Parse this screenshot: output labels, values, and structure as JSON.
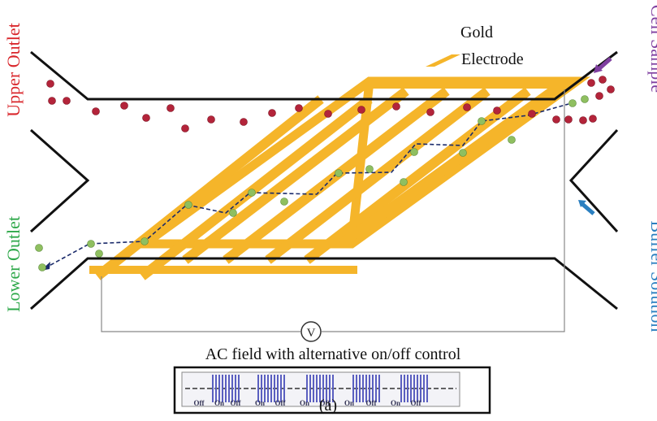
{
  "labels": {
    "upper_outlet": "Upper Outlet",
    "lower_outlet": "Lower Outlet",
    "cell_sample": "Cell Sample",
    "buffer_solution": "Buffer Solution",
    "gold_line1": "Gold",
    "gold_line2": "Electrode",
    "ac_field": "AC field with alternative on/off control",
    "voltage_symbol": "V",
    "caption": "(a)"
  },
  "colors": {
    "upper": "#d9262b",
    "lower": "#2ea84a",
    "cell_sample": "#7f3fa0",
    "buffer": "#2a7fc0",
    "gold": "#f5b52a",
    "channel": "#111111",
    "red_particle": "#b3243a",
    "green_particle": "#8fbf60",
    "pulse": "#5a5fc0"
  },
  "inset": {
    "sequence": [
      "Off",
      "On",
      "Off",
      "On",
      "Off",
      "On",
      "Off",
      "On",
      "Off",
      "On",
      "Off"
    ]
  }
}
